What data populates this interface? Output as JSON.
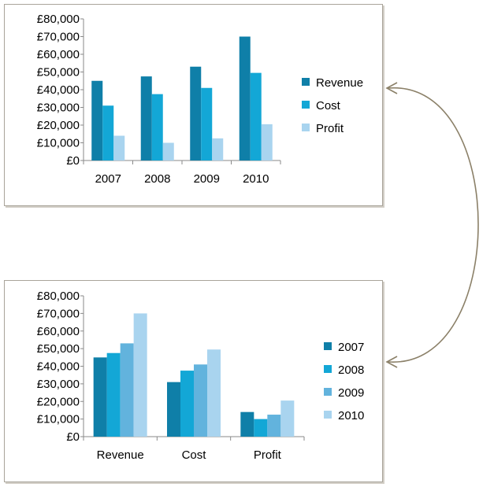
{
  "chart_data": [
    {
      "type": "bar",
      "categories": [
        "2007",
        "2008",
        "2009",
        "2010"
      ],
      "series": [
        {
          "name": "Revenue",
          "values": [
            45000,
            47500,
            53000,
            70000
          ]
        },
        {
          "name": "Cost",
          "values": [
            31000,
            37500,
            41000,
            49500
          ]
        },
        {
          "name": "Profit",
          "values": [
            14000,
            10000,
            12500,
            20500
          ]
        }
      ],
      "ylim": [
        0,
        80000
      ],
      "yticks": [
        "£0",
        "£10,000",
        "£20,000",
        "£30,000",
        "£40,000",
        "£50,000",
        "£60,000",
        "£70,000",
        "£80,000"
      ],
      "legend_position": "right",
      "grid": false
    },
    {
      "type": "bar",
      "categories": [
        "Revenue",
        "Cost",
        "Profit"
      ],
      "series": [
        {
          "name": "2007",
          "values": [
            45000,
            31000,
            14000
          ]
        },
        {
          "name": "2008",
          "values": [
            47500,
            37500,
            10000
          ]
        },
        {
          "name": "2009",
          "values": [
            53000,
            41000,
            12500
          ]
        },
        {
          "name": "2010",
          "values": [
            70000,
            49500,
            20500
          ]
        }
      ],
      "ylim": [
        0,
        80000
      ],
      "yticks": [
        "£0",
        "£10,000",
        "£20,000",
        "£30,000",
        "£40,000",
        "£50,000",
        "£60,000",
        "£70,000",
        "£80,000"
      ],
      "legend_position": "right",
      "grid": false
    }
  ],
  "colors": {
    "chart1": [
      "#0f7fa8",
      "#13a7d6",
      "#a9d4ef"
    ],
    "chart2": [
      "#0f7fa8",
      "#13a7d6",
      "#62b3dd",
      "#a9d4ef"
    ],
    "frame_border": "#a9a49a",
    "connector": "#8b8068"
  },
  "connector": {
    "type": "double-headed-curved-arrow",
    "links": "chart-1 <-> chart-2"
  }
}
